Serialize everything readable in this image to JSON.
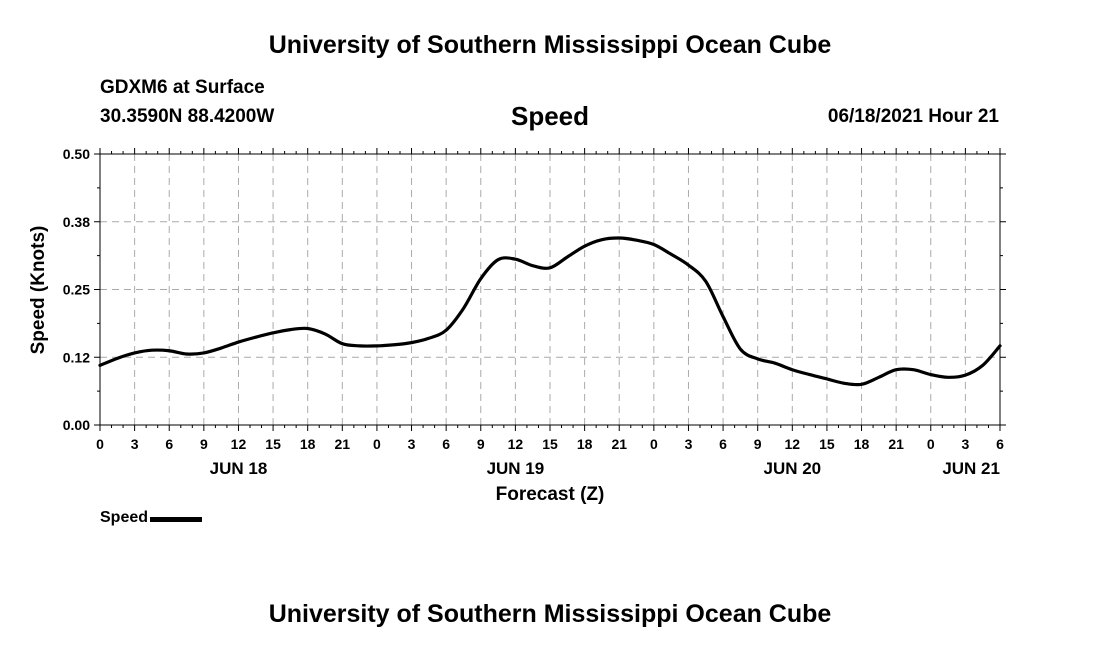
{
  "header": {
    "title": "University of Southern Mississippi Ocean Cube",
    "station": "GDXM6 at Surface",
    "coords": "30.3590N  88.4200W",
    "variable": "Speed",
    "datetime": "06/18/2021 Hour 21"
  },
  "footer": {
    "title": "University of Southern Mississippi Ocean Cube"
  },
  "legend": {
    "label": "Speed",
    "color": "#000000"
  },
  "chart_data": {
    "type": "line",
    "title": "Speed",
    "xlabel": "Forecast (Z)",
    "ylabel": "Speed (Knots)",
    "ylim": [
      0,
      0.5
    ],
    "yticks": [
      "0.00",
      "0.12",
      "0.25",
      "0.38",
      "0.50"
    ],
    "yticks_values": [
      0,
      0.125,
      0.25,
      0.375,
      0.5
    ],
    "xlim": [
      0,
      78
    ],
    "xticks": [
      "0",
      "3",
      "6",
      "9",
      "12",
      "15",
      "18",
      "21",
      "0",
      "3",
      "6",
      "9",
      "12",
      "15",
      "18",
      "21",
      "0",
      "3",
      "6",
      "9",
      "12",
      "15",
      "18",
      "21",
      "0",
      "3",
      "6"
    ],
    "xticks_hours": [
      0,
      3,
      6,
      9,
      12,
      15,
      18,
      21,
      24,
      27,
      30,
      33,
      36,
      39,
      42,
      45,
      48,
      51,
      54,
      57,
      60,
      63,
      66,
      69,
      72,
      75,
      78
    ],
    "day_labels": [
      {
        "label": "JUN 18",
        "hour": 12
      },
      {
        "label": "JUN 19",
        "hour": 36
      },
      {
        "label": "JUN 20",
        "hour": 60
      },
      {
        "label": "JUN 21",
        "hour": 75.5
      }
    ],
    "grid": true,
    "legend_position": "bottom-left",
    "series": [
      {
        "name": "Speed",
        "color": "#000000",
        "x": [
          0,
          1.5,
          3,
          4.5,
          6,
          7.5,
          9,
          10.5,
          12,
          13.5,
          15,
          16.5,
          18,
          19.5,
          21,
          22.5,
          24,
          25.5,
          27,
          28.5,
          30,
          31.5,
          33,
          34.5,
          36,
          37.5,
          39,
          40.5,
          42,
          43.5,
          45,
          46.5,
          48,
          49.5,
          51,
          52.5,
          54,
          55.5,
          57,
          58.5,
          60,
          61.5,
          63,
          64.5,
          66,
          67.5,
          69,
          70.5,
          72,
          73.5,
          75,
          76.5,
          78
        ],
        "values": [
          0.11,
          0.123,
          0.133,
          0.138,
          0.137,
          0.131,
          0.133,
          0.142,
          0.153,
          0.162,
          0.17,
          0.176,
          0.178,
          0.168,
          0.15,
          0.146,
          0.146,
          0.148,
          0.152,
          0.16,
          0.175,
          0.215,
          0.27,
          0.305,
          0.306,
          0.294,
          0.29,
          0.31,
          0.33,
          0.342,
          0.345,
          0.341,
          0.333,
          0.315,
          0.295,
          0.265,
          0.2,
          0.14,
          0.122,
          0.114,
          0.102,
          0.093,
          0.085,
          0.077,
          0.075,
          0.088,
          0.102,
          0.102,
          0.093,
          0.088,
          0.092,
          0.11,
          0.146
        ]
      }
    ]
  }
}
